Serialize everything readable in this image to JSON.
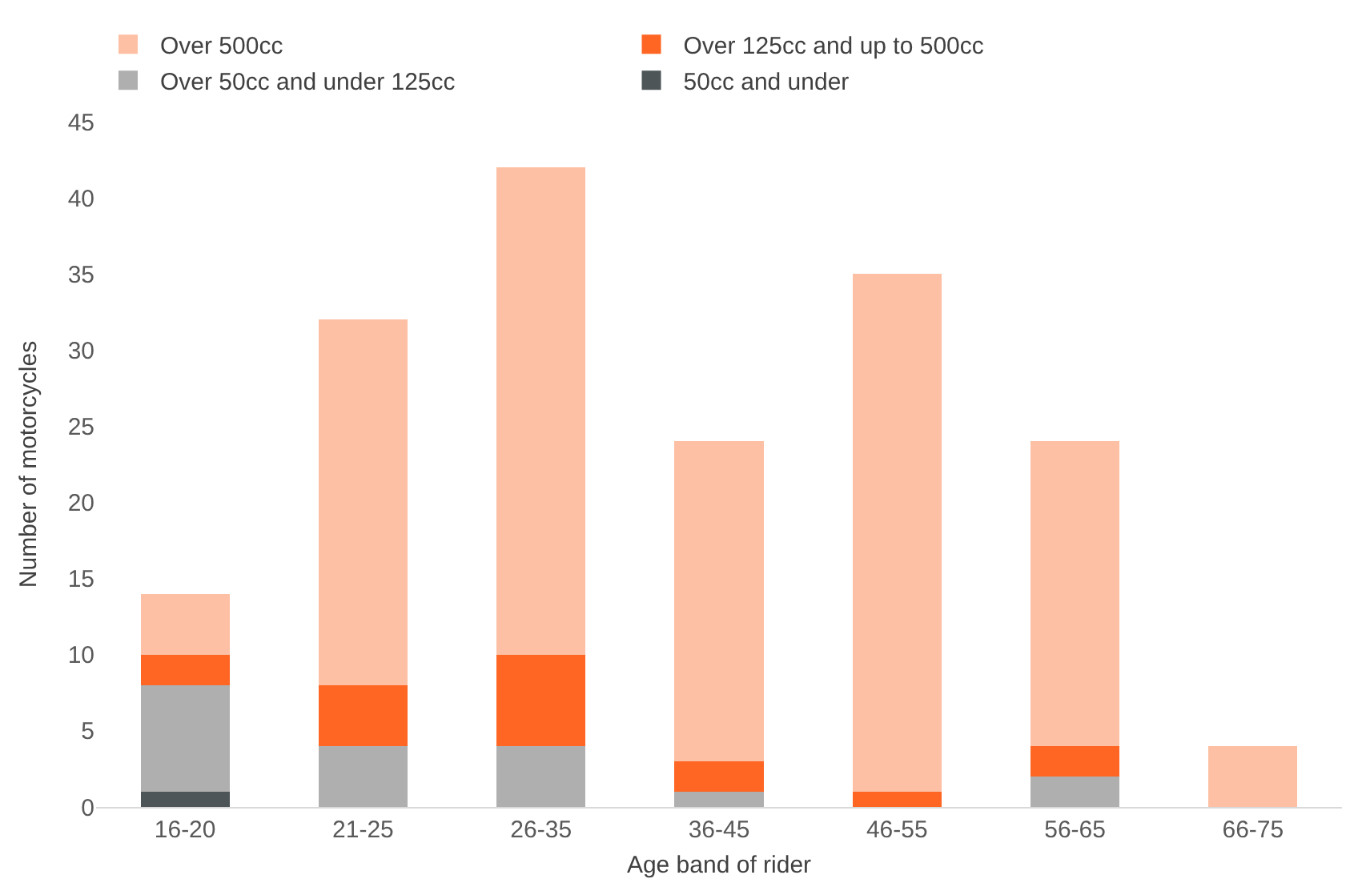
{
  "chart_data": {
    "type": "bar",
    "stacked": true,
    "xlabel": "Age band of rider",
    "ylabel": "Number of motorcycles",
    "categories": [
      "16-20",
      "21-25",
      "26-35",
      "36-45",
      "46-55",
      "56-65",
      "66-75"
    ],
    "series": [
      {
        "name": "50cc and under",
        "color": "#4d5558",
        "values": [
          1,
          0,
          0,
          0,
          0,
          0,
          0
        ]
      },
      {
        "name": "Over 50cc and under 125cc",
        "color": "#afafaf",
        "values": [
          7,
          4,
          4,
          1,
          0,
          2,
          0
        ]
      },
      {
        "name": "Over 125cc and up to 500cc",
        "color": "#ff6523",
        "values": [
          2,
          4,
          6,
          2,
          1,
          2,
          0
        ]
      },
      {
        "name": "Over 500cc",
        "color": "#fdc0a4",
        "values": [
          4,
          24,
          32,
          21,
          34,
          20,
          4
        ]
      }
    ],
    "ylim": [
      0,
      45
    ],
    "yticks": [
      0,
      5,
      10,
      15,
      20,
      25,
      30,
      35,
      40,
      45
    ],
    "grid": false,
    "legend": "top"
  }
}
